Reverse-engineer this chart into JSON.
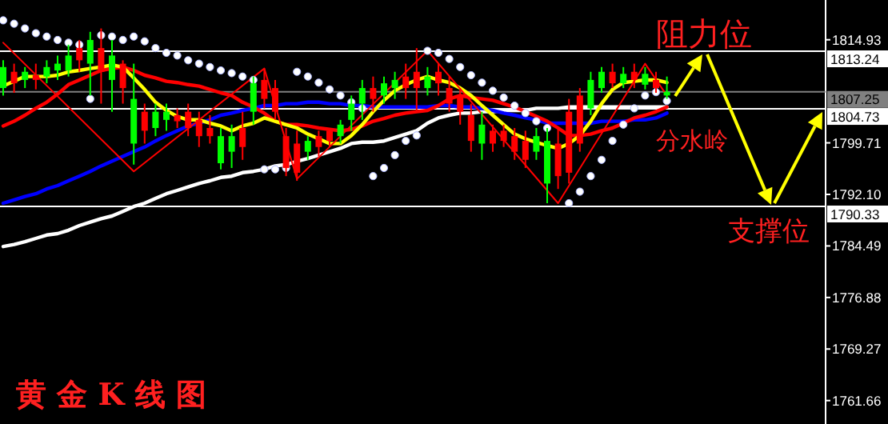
{
  "chart_data": {
    "type": "candlestick",
    "title": "黄 金 K 线 图",
    "categories": [
      null,
      null,
      null,
      null,
      null,
      null,
      null,
      null,
      null,
      null,
      null,
      null,
      null,
      null,
      null,
      null,
      null,
      null,
      null,
      null,
      null,
      null,
      null,
      null,
      null,
      null,
      null,
      null,
      null,
      null,
      null,
      null,
      null,
      null,
      null,
      null,
      null,
      null,
      null,
      null,
      null,
      null,
      null,
      null,
      null,
      null,
      null,
      null,
      null,
      null,
      null,
      null,
      null,
      null,
      null,
      null,
      null,
      null,
      null,
      null,
      null,
      null
    ],
    "ohlc": [
      [
        1807.8,
        1811.9,
        1806.7,
        1810.9
      ],
      [
        1810.2,
        1811.4,
        1807.1,
        1808.5
      ],
      [
        1809.0,
        1810.9,
        1807.8,
        1810.2
      ],
      [
        1809.7,
        1811.4,
        1807.6,
        1809.0
      ],
      [
        1809.5,
        1811.9,
        1808.5,
        1810.9
      ],
      [
        1810.4,
        1812.6,
        1809.0,
        1811.4
      ],
      [
        1810.4,
        1814.2,
        1809.5,
        1812.6
      ],
      [
        1813.7,
        1814.9,
        1810.2,
        1811.9
      ],
      [
        1811.4,
        1816.1,
        1806.7,
        1814.9
      ],
      [
        1813.7,
        1816.6,
        1805.5,
        1810.2
      ],
      [
        1809.0,
        1814.9,
        1804.3,
        1812.6
      ],
      [
        1811.4,
        1811.9,
        1805.5,
        1807.8
      ],
      [
        1799.6,
        1811.4,
        1796.5,
        1806.2
      ],
      [
        1804.3,
        1805.5,
        1799.6,
        1801.5
      ],
      [
        1801.9,
        1805.5,
        1800.7,
        1804.3
      ],
      [
        1803.1,
        1805.5,
        1801.5,
        1804.3
      ],
      [
        1803.8,
        1804.8,
        1801.9,
        1802.9
      ],
      [
        1804.3,
        1805.5,
        1800.7,
        1801.9
      ],
      [
        1803.1,
        1804.3,
        1799.1,
        1800.7
      ],
      [
        1801.9,
        1803.8,
        1799.6,
        1800.7
      ],
      [
        1796.7,
        1801.9,
        1795.8,
        1800.7
      ],
      [
        1798.4,
        1802.4,
        1796.0,
        1800.7
      ],
      [
        1801.9,
        1804.3,
        1797.2,
        1799.1
      ],
      [
        1804.3,
        1809.5,
        1802.4,
        1808.5
      ],
      [
        1809.0,
        1810.7,
        1804.8,
        1806.2
      ],
      [
        1807.8,
        1809.0,
        1803.1,
        1804.3
      ],
      [
        1800.7,
        1801.9,
        1794.8,
        1796.0
      ],
      [
        1799.6,
        1801.5,
        1794.1,
        1795.3
      ],
      [
        1798.4,
        1800.7,
        1797.2,
        1800.0
      ],
      [
        1800.7,
        1801.5,
        1797.7,
        1799.1
      ],
      [
        1801.5,
        1801.9,
        1799.1,
        1800.0
      ],
      [
        1800.7,
        1803.1,
        1799.6,
        1802.4
      ],
      [
        1803.1,
        1806.7,
        1801.5,
        1805.5
      ],
      [
        1805.5,
        1809.0,
        1803.1,
        1807.8
      ],
      [
        1807.8,
        1809.5,
        1804.3,
        1806.2
      ],
      [
        1806.7,
        1809.5,
        1805.5,
        1808.5
      ],
      [
        1807.8,
        1810.2,
        1806.2,
        1809.0
      ],
      [
        1809.5,
        1811.4,
        1806.2,
        1807.8
      ],
      [
        1810.2,
        1813.7,
        1804.3,
        1807.8
      ],
      [
        1807.8,
        1810.9,
        1806.7,
        1809.5
      ],
      [
        1810.2,
        1811.4,
        1806.7,
        1808.5
      ],
      [
        1807.8,
        1809.5,
        1804.3,
        1805.5
      ],
      [
        1806.7,
        1807.8,
        1802.4,
        1804.3
      ],
      [
        1803.8,
        1805.5,
        1798.4,
        1800.0
      ],
      [
        1799.6,
        1804.3,
        1797.2,
        1802.4
      ],
      [
        1801.5,
        1802.4,
        1798.4,
        1799.6
      ],
      [
        1801.5,
        1802.4,
        1799.1,
        1800.0
      ],
      [
        1800.7,
        1801.9,
        1797.2,
        1798.4
      ],
      [
        1800.0,
        1801.5,
        1796.0,
        1797.2
      ],
      [
        1798.4,
        1801.9,
        1797.2,
        1800.7
      ],
      [
        1793.7,
        1801.9,
        1790.8,
        1800.0
      ],
      [
        1799.6,
        1801.9,
        1792.9,
        1794.8
      ],
      [
        1804.3,
        1806.2,
        1793.7,
        1795.3
      ],
      [
        1806.7,
        1807.8,
        1798.4,
        1799.6
      ],
      [
        1804.8,
        1810.2,
        1803.8,
        1809.0
      ],
      [
        1807.8,
        1810.9,
        1807.1,
        1810.2
      ],
      [
        1810.2,
        1811.4,
        1807.8,
        1808.5
      ],
      [
        1808.5,
        1810.9,
        1807.8,
        1809.9
      ],
      [
        1810.2,
        1811.4,
        1807.8,
        1809.0
      ],
      [
        1808.3,
        1810.9,
        1807.6,
        1809.9
      ],
      [
        1809.0,
        1810.2,
        1807.1,
        1807.8
      ],
      [
        1806.7,
        1809.5,
        1806.2,
        1807.25
      ]
    ],
    "colors": [
      "#00ff00",
      "#ff0000",
      "#00ff00",
      "#ff0000",
      "#00ff00",
      "#00ff00",
      "#00ff00",
      "#ff0000",
      "#00ff00",
      "#ff0000",
      "#00ff00",
      "#ff0000",
      "#00ff00",
      "#ff0000",
      "#00ff00",
      "#00ff00",
      "#ff0000",
      "#ff0000",
      "#ff0000",
      "#ff0000",
      "#00ff00",
      "#00ff00",
      "#ff0000",
      "#00ff00",
      "#ff0000",
      "#ff0000",
      "#ff0000",
      "#ff0000",
      "#00ff00",
      "#ff0000",
      "#ff0000",
      "#00ff00",
      "#00ff00",
      "#00ff00",
      "#ff0000",
      "#00ff00",
      "#00ff00",
      "#ff0000",
      "#ff0000",
      "#00ff00",
      "#ff0000",
      "#ff0000",
      "#ff0000",
      "#ff0000",
      "#00ff00",
      "#ff0000",
      "#ff0000",
      "#ff0000",
      "#ff0000",
      "#00ff00",
      "#00ff00",
      "#ff0000",
      "#ff0000",
      "#ff0000",
      "#00ff00",
      "#00ff00",
      "#ff0000",
      "#00ff00",
      "#ff0000",
      "#00ff00",
      "#ff0000",
      "#00ff00"
    ],
    "series": [
      {
        "type": "line",
        "color": "#ffffff",
        "values": [
          1784.4,
          1784.7,
          1785.1,
          1785.6,
          1786.1,
          1786.3,
          1786.8,
          1787.5,
          1788.0,
          1788.5,
          1788.9,
          1789.6,
          1790.3,
          1790.8,
          1791.5,
          1792.2,
          1792.7,
          1793.2,
          1793.7,
          1794.1,
          1794.6,
          1794.8,
          1795.3,
          1795.5,
          1795.8,
          1796.3,
          1796.5,
          1797.0,
          1797.4,
          1797.9,
          1798.4,
          1798.9,
          1799.6,
          1799.8,
          1799.8,
          1800.0,
          1800.5,
          1801.0,
          1801.5,
          1802.6,
          1803.4,
          1803.8,
          1804.1,
          1804.1,
          1804.3,
          1804.3,
          1804.5,
          1804.5,
          1804.5,
          1804.8,
          1804.8,
          1804.8,
          1805.0,
          1805.0,
          1805.0,
          1805.0,
          1805.0,
          1805.0,
          1805.0,
          1805.0,
          1805.0,
          1805.0
        ]
      },
      {
        "type": "line",
        "color": "#0000ff",
        "values": [
          1790.8,
          1791.3,
          1791.8,
          1792.2,
          1792.9,
          1793.4,
          1794.1,
          1794.8,
          1795.5,
          1796.3,
          1797.0,
          1797.7,
          1798.4,
          1799.1,
          1800.0,
          1800.8,
          1801.5,
          1802.2,
          1802.6,
          1803.1,
          1803.8,
          1804.1,
          1804.5,
          1804.8,
          1805.2,
          1805.2,
          1805.5,
          1805.5,
          1805.7,
          1805.7,
          1805.5,
          1805.5,
          1805.2,
          1805.2,
          1805.0,
          1805.0,
          1805.0,
          1805.0,
          1805.0,
          1805.0,
          1805.2,
          1805.2,
          1805.0,
          1805.0,
          1804.8,
          1804.5,
          1804.1,
          1803.8,
          1803.4,
          1803.1,
          1802.6,
          1802.6,
          1802.6,
          1802.6,
          1802.6,
          1802.9,
          1802.9,
          1802.9,
          1803.1,
          1803.1,
          1803.4,
          1804.1
        ]
      },
      {
        "type": "line",
        "color": "#ff0000",
        "values": [
          1802.2,
          1802.9,
          1803.8,
          1804.8,
          1805.7,
          1806.9,
          1808.3,
          1809.0,
          1809.7,
          1810.4,
          1810.7,
          1810.9,
          1810.4,
          1809.7,
          1809.3,
          1808.8,
          1808.6,
          1808.3,
          1808.1,
          1807.6,
          1807.1,
          1806.7,
          1805.7,
          1805.0,
          1804.1,
          1802.9,
          1802.4,
          1802.4,
          1802.2,
          1801.9,
          1801.7,
          1801.5,
          1801.7,
          1802.2,
          1802.9,
          1803.3,
          1803.8,
          1804.1,
          1804.3,
          1804.5,
          1805.2,
          1806.2,
          1806.7,
          1806.4,
          1806.2,
          1806.0,
          1805.5,
          1805.0,
          1804.3,
          1803.6,
          1802.9,
          1801.9,
          1800.8,
          1800.8,
          1801.0,
          1801.5,
          1801.9,
          1802.6,
          1803.4,
          1803.8,
          1804.3,
          1805.0
        ]
      },
      {
        "type": "line",
        "color": "#ffff00",
        "values": [
          1808.1,
          1808.8,
          1809.5,
          1809.5,
          1809.5,
          1809.7,
          1810.2,
          1810.4,
          1810.7,
          1810.9,
          1811.2,
          1810.9,
          1809.3,
          1807.6,
          1805.7,
          1804.5,
          1803.6,
          1803.1,
          1803.1,
          1802.6,
          1802.2,
          1801.5,
          1802.2,
          1802.6,
          1803.4,
          1802.9,
          1802.4,
          1801.9,
          1801.0,
          1800.3,
          1799.6,
          1799.6,
          1800.8,
          1802.4,
          1804.3,
          1806.0,
          1807.4,
          1808.3,
          1809.0,
          1809.5,
          1809.0,
          1808.6,
          1807.8,
          1806.7,
          1805.2,
          1803.8,
          1802.4,
          1801.0,
          1800.3,
          1799.8,
          1799.3,
          1798.9,
          1799.6,
          1800.8,
          1802.9,
          1805.5,
          1807.6,
          1808.6,
          1808.8,
          1809.0,
          1809.0,
          1808.6
        ]
      },
      {
        "type": "line",
        "color": "#ff0000",
        "values": [
          1814.5,
          null,
          null,
          null,
          null,
          null,
          null,
          null,
          null,
          null,
          null,
          null,
          1795.5,
          null,
          null,
          null,
          null,
          null,
          null,
          null,
          null,
          null,
          null,
          null,
          1810.7,
          null,
          null,
          1794.4,
          null,
          null,
          null,
          null,
          null,
          null,
          null,
          null,
          null,
          null,
          null,
          1813.3,
          null,
          null,
          null,
          null,
          null,
          null,
          null,
          null,
          null,
          null,
          null,
          1790.8,
          null,
          null,
          null,
          null,
          null,
          null,
          null,
          1811.4,
          null,
          1806.7
        ]
      },
      {
        "type": "scatter",
        "color": "#ffffff",
        "values": [
          1817.8,
          1817.3,
          1816.6,
          1815.9,
          1815.4,
          1814.9,
          1814.5,
          1814.2,
          1806.2,
          1815.6,
          1815.4,
          1814.9,
          1815.4,
          1814.7,
          1813.7,
          1813.0,
          1812.6,
          1811.9,
          1811.4,
          1810.9,
          1810.4,
          1810.0,
          1809.5,
          1809.0,
          1795.8,
          1795.8,
          1796.0,
          1810.2,
          1809.5,
          1808.6,
          1807.6,
          1806.7,
          1805.7,
          1804.8,
          1794.8,
          1796.0,
          1797.9,
          1800.0,
          1800.8,
          1813.3,
          1813.0,
          1812.1,
          1810.9,
          1809.7,
          1808.6,
          1807.4,
          1806.4,
          1805.2,
          1804.1,
          1802.9,
          1801.9,
          null,
          1790.8,
          1792.5,
          1794.8,
          1797.2,
          1800.0,
          1802.4,
          1804.8,
          1806.7,
          1807.2,
          1805.9
        ]
      }
    ],
    "ylim": [
      1758.2,
      1820.8
    ],
    "yticks": [
      1814.93,
      1799.71,
      {
        "value": 1792.1,
        "label": "1792.10"
      },
      1784.49,
      1776.88,
      1769.27,
      1761.66
    ],
    "tick_labels": "y",
    "ref_lines": [
      {
        "axis": "y",
        "value": 1813.24,
        "label": "1813.24",
        "color": "#ffffff"
      },
      {
        "axis": "y",
        "value": 1807.25,
        "label": "1807.25",
        "color": "#808080"
      },
      {
        "axis": "y",
        "value": 1804.73,
        "label": "1804.73",
        "color": "#ffffff"
      },
      {
        "axis": "y",
        "value": 1790.33,
        "label": "1790.33",
        "color": "#ffffff"
      }
    ],
    "annotations": [
      "阻力位",
      "分水岭",
      "支撑位"
    ]
  }
}
